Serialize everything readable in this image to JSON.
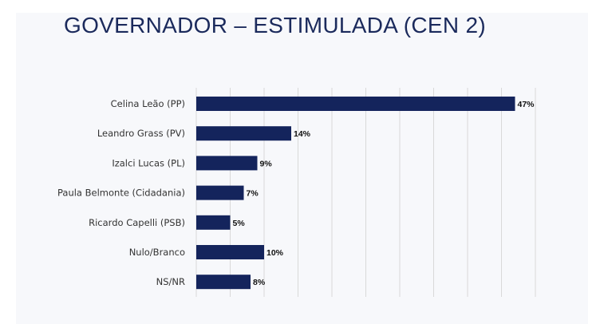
{
  "title": "GOVERNADOR – ESTIMULADA (CEN 2)",
  "colors": {
    "bar": "#14245c",
    "grid": "#d9d9d9",
    "title": "#1b2a5c"
  },
  "chart_data": {
    "type": "bar",
    "orientation": "horizontal",
    "title": "GOVERNADOR – ESTIMULADA (CEN 2)",
    "categories": [
      "Celina Leão (PP)",
      "Leandro Grass (PV)",
      "Izalci Lucas (PL)",
      "Paula Belmonte (Cidadania)",
      "Ricardo Capelli (PSB)",
      "Nulo/Branco",
      "NS/NR"
    ],
    "values": [
      47,
      14,
      9,
      7,
      5,
      10,
      8
    ],
    "value_labels": [
      "47%",
      "14%",
      "9%",
      "7%",
      "5%",
      "10%",
      "8%"
    ],
    "xlim": [
      0,
      50
    ],
    "grid": true
  }
}
